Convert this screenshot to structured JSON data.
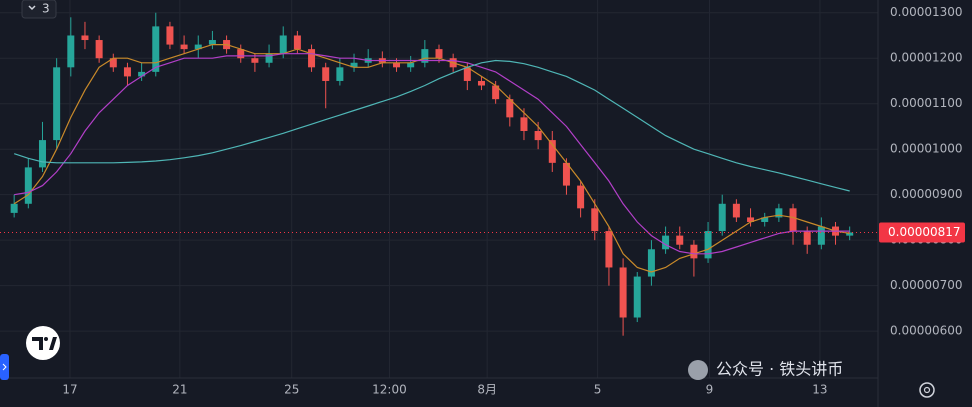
{
  "chart_data": {
    "type": "candlestick",
    "collapsed_indicators": 3,
    "annotations": [
      "公众号 · 铁头讲币"
    ],
    "open": [
      8.6e-06,
      8.8e-06,
      9.6e-06,
      1.02e-05,
      1.18e-05,
      1.25e-05,
      1.24e-05,
      1.2e-05,
      1.18e-05,
      1.16e-05,
      1.17e-05,
      1.27e-05,
      1.23e-05,
      1.22e-05,
      1.23e-05,
      1.24e-05,
      1.22e-05,
      1.2e-05,
      1.19e-05,
      1.21e-05,
      1.25e-05,
      1.22e-05,
      1.18e-05,
      1.15e-05,
      1.18e-05,
      1.19e-05,
      1.2e-05,
      1.19e-05,
      1.18e-05,
      1.19e-05,
      1.22e-05,
      1.2e-05,
      1.18e-05,
      1.15e-05,
      1.14e-05,
      1.11e-05,
      1.07e-05,
      1.04e-05,
      1.02e-05,
      9.7e-06,
      9.2e-06,
      8.7e-06,
      8.2e-06,
      7.4e-06,
      6.3e-06,
      7.2e-06,
      7.8e-06,
      8.1e-06,
      7.9e-06,
      7.6e-06,
      8.2e-06,
      8.8e-06,
      8.5e-06,
      8.4e-06,
      8.5e-06,
      8.7e-06,
      8.2e-06,
      7.9e-06,
      8.3e-06,
      8.1e-06
    ],
    "high": [
      9e-06,
      9.8e-06,
      1.06e-05,
      1.2e-05,
      1.29e-05,
      1.28e-05,
      1.25e-05,
      1.21e-05,
      1.19e-05,
      1.19e-05,
      1.3e-05,
      1.28e-05,
      1.25e-05,
      1.25e-05,
      1.26e-05,
      1.25e-05,
      1.23e-05,
      1.21e-05,
      1.23e-05,
      1.27e-05,
      1.26e-05,
      1.23e-05,
      1.19e-05,
      1.2e-05,
      1.21e-05,
      1.22e-05,
      1.215e-05,
      1.2e-05,
      1.205e-05,
      1.24e-05,
      1.23e-05,
      1.21e-05,
      1.19e-05,
      1.16e-05,
      1.15e-05,
      1.12e-05,
      1.09e-05,
      1.06e-05,
      1.04e-05,
      9.8e-06,
      9.3e-06,
      8.9e-06,
      8.3e-06,
      7.6e-06,
      7.3e-06,
      8e-06,
      8.3e-06,
      8.3e-06,
      8e-06,
      8.4e-06,
      9e-06,
      8.9e-06,
      8.7e-06,
      8.6e-06,
      8.8e-06,
      8.8e-06,
      8.3e-06,
      8.5e-06,
      8.4e-06,
      8.3e-06
    ],
    "low": [
      8.5e-06,
      8.7e-06,
      9.5e-06,
      1e-05,
      1.16e-05,
      1.22e-05,
      1.19e-05,
      1.17e-05,
      1.14e-05,
      1.15e-05,
      1.16e-05,
      1.22e-05,
      1.21e-05,
      1.2e-05,
      1.22e-05,
      1.21e-05,
      1.19e-05,
      1.17e-05,
      1.18e-05,
      1.2e-05,
      1.21e-05,
      1.17e-05,
      1.09e-05,
      1.14e-05,
      1.17e-05,
      1.18e-05,
      1.18e-05,
      1.17e-05,
      1.17e-05,
      1.18e-05,
      1.19e-05,
      1.17e-05,
      1.13e-05,
      1.13e-05,
      1.1e-05,
      1.05e-05,
      1.02e-05,
      1e-05,
      9.5e-06,
      9e-06,
      8.5e-06,
      8e-06,
      7e-06,
      5.9e-06,
      6.2e-06,
      7e-06,
      7.7e-06,
      7.8e-06,
      7.2e-06,
      7.5e-06,
      8.1e-06,
      8.4e-06,
      8.3e-06,
      8.3e-06,
      8.4e-06,
      7.9e-06,
      7.7e-06,
      7.8e-06,
      7.9e-06,
      8e-06
    ],
    "close": [
      8.8e-06,
      9.6e-06,
      1.02e-05,
      1.18e-05,
      1.25e-05,
      1.24e-05,
      1.2e-05,
      1.18e-05,
      1.16e-05,
      1.17e-05,
      1.27e-05,
      1.23e-05,
      1.22e-05,
      1.23e-05,
      1.24e-05,
      1.22e-05,
      1.2e-05,
      1.19e-05,
      1.21e-05,
      1.25e-05,
      1.22e-05,
      1.18e-05,
      1.15e-05,
      1.18e-05,
      1.19e-05,
      1.2e-05,
      1.19e-05,
      1.18e-05,
      1.19e-05,
      1.22e-05,
      1.2e-05,
      1.18e-05,
      1.15e-05,
      1.14e-05,
      1.11e-05,
      1.07e-05,
      1.04e-05,
      1.02e-05,
      9.7e-06,
      9.2e-06,
      8.7e-06,
      8.2e-06,
      7.4e-06,
      6.3e-06,
      7.2e-06,
      7.8e-06,
      8.1e-06,
      7.9e-06,
      7.6e-06,
      8.2e-06,
      8.8e-06,
      8.5e-06,
      8.4e-06,
      8.5e-06,
      8.7e-06,
      8.2e-06,
      7.9e-06,
      8.3e-06,
      8.1e-06,
      8.17e-06
    ],
    "up_color": "#26a69a",
    "down_color": "#ef5350",
    "series": [
      {
        "color": "#c98a2a",
        "values": [
          8.8e-06,
          9e-06,
          9.4e-06,
          1e-05,
          1.07e-05,
          1.13e-05,
          1.18e-05,
          1.2e-05,
          1.2e-05,
          1.19e-05,
          1.19e-05,
          1.2e-05,
          1.21e-05,
          1.22e-05,
          1.23e-05,
          1.23e-05,
          1.22e-05,
          1.21e-05,
          1.21e-05,
          1.21e-05,
          1.22e-05,
          1.21e-05,
          1.2e-05,
          1.19e-05,
          1.18e-05,
          1.18e-05,
          1.19e-05,
          1.19e-05,
          1.19e-05,
          1.2e-05,
          1.2e-05,
          1.19e-05,
          1.18e-05,
          1.16e-05,
          1.14e-05,
          1.11e-05,
          1.08e-05,
          1.05e-05,
          1.01e-05,
          9.7e-06,
          9.3e-06,
          8.8e-06,
          8.3e-06,
          7.7e-06,
          7.4e-06,
          7.3e-06,
          7.4e-06,
          7.6e-06,
          7.7e-06,
          7.8e-06,
          8e-06,
          8.2e-06,
          8.4e-06,
          8.5e-06,
          8.55e-06,
          8.5e-06,
          8.4e-06,
          8.3e-06,
          8.2e-06,
          8.15e-06
        ]
      },
      {
        "color": "#b23fc8",
        "values": [
          9e-06,
          9.05e-06,
          9.2e-06,
          9.5e-06,
          9.9e-06,
          1.04e-05,
          1.08e-05,
          1.11e-05,
          1.14e-05,
          1.16e-05,
          1.18e-05,
          1.19e-05,
          1.2e-05,
          1.2e-05,
          1.2e-05,
          1.205e-05,
          1.205e-05,
          1.205e-05,
          1.205e-05,
          1.21e-05,
          1.21e-05,
          1.21e-05,
          1.205e-05,
          1.2e-05,
          1.2e-05,
          1.195e-05,
          1.195e-05,
          1.195e-05,
          1.195e-05,
          1.195e-05,
          1.195e-05,
          1.195e-05,
          1.19e-05,
          1.18e-05,
          1.17e-05,
          1.15e-05,
          1.13e-05,
          1.11e-05,
          1.08e-05,
          1.05e-05,
          1.01e-05,
          9.7e-06,
          9.3e-06,
          8.8e-06,
          8.4e-06,
          8.1e-06,
          7.9e-06,
          7.75e-06,
          7.7e-06,
          7.7e-06,
          7.75e-06,
          7.85e-06,
          7.95e-06,
          8.05e-06,
          8.15e-06,
          8.2e-06,
          8.2e-06,
          8.2e-06,
          8.2e-06,
          8.2e-06
        ]
      },
      {
        "color": "#4fb6b6",
        "values": [
          9.9e-06,
          9.8e-06,
          9.72e-06,
          9.7e-06,
          9.7e-06,
          9.7e-06,
          9.7e-06,
          9.7e-06,
          9.71e-06,
          9.72e-06,
          9.74e-06,
          9.77e-06,
          9.81e-06,
          9.86e-06,
          9.92e-06,
          1e-05,
          1.008e-05,
          1.017e-05,
          1.026e-05,
          1.035e-05,
          1.045e-05,
          1.055e-05,
          1.065e-05,
          1.075e-05,
          1.085e-05,
          1.095e-05,
          1.105e-05,
          1.115e-05,
          1.127e-05,
          1.14e-05,
          1.155e-05,
          1.168e-05,
          1.18e-05,
          1.19e-05,
          1.195e-05,
          1.193e-05,
          1.188e-05,
          1.18e-05,
          1.17e-05,
          1.16e-05,
          1.145e-05,
          1.13e-05,
          1.11e-05,
          1.09e-05,
          1.07e-05,
          1.05e-05,
          1.03e-05,
          1.015e-05,
          1e-05,
          9.9e-06,
          9.8e-06,
          9.7e-06,
          9.62e-06,
          9.55e-06,
          9.48e-06,
          9.4e-06,
          9.32e-06,
          9.24e-06,
          9.16e-06,
          9.08e-06
        ]
      }
    ],
    "last_price": {
      "value": 8.17e-06,
      "label": "0.00000817"
    },
    "last_price_color": "#f23645",
    "xlim": [
      -1,
      61
    ],
    "xticks": [
      {
        "value": 3.94,
        "label": "17"
      },
      {
        "value": 11.7,
        "label": "21"
      },
      {
        "value": 19.6,
        "label": "25"
      },
      {
        "value": 26.5,
        "label": "12:00"
      },
      {
        "value": 33.4,
        "label": "8月"
      },
      {
        "value": 41.2,
        "label": "5"
      },
      {
        "value": 49.1,
        "label": "9"
      },
      {
        "value": 56.9,
        "label": "13"
      }
    ],
    "ylim": [
      4.97e-06,
      1.328e-05
    ],
    "yticks": [
      {
        "value": 6e-06,
        "label": "0.00000600"
      },
      {
        "value": 7e-06,
        "label": "0.00000700"
      },
      {
        "value": 8e-06,
        "label": "0.00000800"
      },
      {
        "value": 9e-06,
        "label": "0.00000900"
      },
      {
        "value": 1e-05,
        "label": "0.00001000"
      },
      {
        "value": 1.1e-05,
        "label": "0.00001100"
      },
      {
        "value": 1.2e-05,
        "label": "0.00001200"
      },
      {
        "value": 1.3e-05,
        "label": "0.00001300"
      }
    ],
    "grid": true
  }
}
